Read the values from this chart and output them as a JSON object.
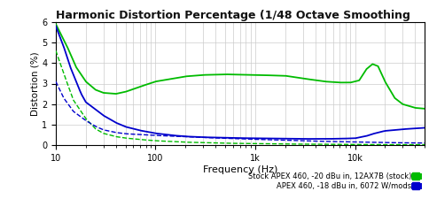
{
  "title": "Harmonic Distortion Percentage (1/48 Octave Smoothing",
  "xlabel": "Frequency (Hz)",
  "ylabel": "Distortion (%)",
  "ylim": [
    0,
    6
  ],
  "yticks": [
    0,
    1,
    2,
    3,
    4,
    5,
    6
  ],
  "xmin": 10,
  "xmax": 50000,
  "legend1": "Stock APEX 460, -20 dBu in, 12AX7B (stock)",
  "legend2": "APEX 460, -18 dBu in, 6072 W/mods",
  "color_green": "#00bb00",
  "color_blue": "#0000cc",
  "title_color": "#111111",
  "background_color": "#ffffff",
  "grid_color": "#cccccc",
  "green_solid_pts": [
    [
      10,
      5.9
    ],
    [
      13,
      4.8
    ],
    [
      16,
      3.8
    ],
    [
      20,
      3.1
    ],
    [
      25,
      2.7
    ],
    [
      30,
      2.55
    ],
    [
      40,
      2.5
    ],
    [
      50,
      2.6
    ],
    [
      70,
      2.85
    ],
    [
      100,
      3.1
    ],
    [
      200,
      3.35
    ],
    [
      300,
      3.42
    ],
    [
      500,
      3.45
    ],
    [
      1000,
      3.42
    ],
    [
      2000,
      3.38
    ],
    [
      3000,
      3.25
    ],
    [
      5000,
      3.1
    ],
    [
      7000,
      3.05
    ],
    [
      9000,
      3.05
    ],
    [
      11000,
      3.15
    ],
    [
      13000,
      3.7
    ],
    [
      15000,
      3.95
    ],
    [
      17000,
      3.85
    ],
    [
      20000,
      3.1
    ],
    [
      25000,
      2.3
    ],
    [
      30000,
      2.0
    ],
    [
      40000,
      1.82
    ],
    [
      50000,
      1.78
    ]
  ],
  "green_dashed_pts": [
    [
      10,
      4.6
    ],
    [
      12,
      3.5
    ],
    [
      15,
      2.2
    ],
    [
      20,
      1.3
    ],
    [
      25,
      0.8
    ],
    [
      30,
      0.58
    ],
    [
      40,
      0.42
    ],
    [
      50,
      0.35
    ],
    [
      70,
      0.28
    ],
    [
      100,
      0.22
    ],
    [
      200,
      0.15
    ],
    [
      500,
      0.1
    ],
    [
      1000,
      0.08
    ],
    [
      2000,
      0.06
    ],
    [
      5000,
      0.05
    ],
    [
      10000,
      0.04
    ],
    [
      20000,
      0.03
    ],
    [
      50000,
      0.03
    ]
  ],
  "blue_solid_pts": [
    [
      10,
      5.8
    ],
    [
      12,
      4.8
    ],
    [
      14,
      3.8
    ],
    [
      16,
      3.1
    ],
    [
      18,
      2.5
    ],
    [
      20,
      2.1
    ],
    [
      25,
      1.75
    ],
    [
      30,
      1.45
    ],
    [
      40,
      1.1
    ],
    [
      50,
      0.9
    ],
    [
      70,
      0.72
    ],
    [
      100,
      0.58
    ],
    [
      150,
      0.48
    ],
    [
      200,
      0.43
    ],
    [
      300,
      0.39
    ],
    [
      500,
      0.37
    ],
    [
      700,
      0.35
    ],
    [
      1000,
      0.34
    ],
    [
      2000,
      0.32
    ],
    [
      3000,
      0.31
    ],
    [
      5000,
      0.31
    ],
    [
      7000,
      0.32
    ],
    [
      10000,
      0.34
    ],
    [
      13000,
      0.45
    ],
    [
      15000,
      0.55
    ],
    [
      18000,
      0.65
    ],
    [
      20000,
      0.7
    ],
    [
      30000,
      0.78
    ],
    [
      50000,
      0.85
    ]
  ],
  "blue_dashed_pts": [
    [
      10,
      3.1
    ],
    [
      12,
      2.3
    ],
    [
      15,
      1.65
    ],
    [
      20,
      1.2
    ],
    [
      25,
      0.92
    ],
    [
      30,
      0.75
    ],
    [
      40,
      0.62
    ],
    [
      50,
      0.56
    ],
    [
      70,
      0.52
    ],
    [
      100,
      0.48
    ],
    [
      150,
      0.44
    ],
    [
      200,
      0.42
    ],
    [
      300,
      0.38
    ],
    [
      500,
      0.34
    ],
    [
      700,
      0.31
    ],
    [
      1000,
      0.29
    ],
    [
      2000,
      0.25
    ],
    [
      3000,
      0.22
    ],
    [
      5000,
      0.19
    ],
    [
      10000,
      0.16
    ],
    [
      20000,
      0.13
    ],
    [
      50000,
      0.11
    ]
  ]
}
